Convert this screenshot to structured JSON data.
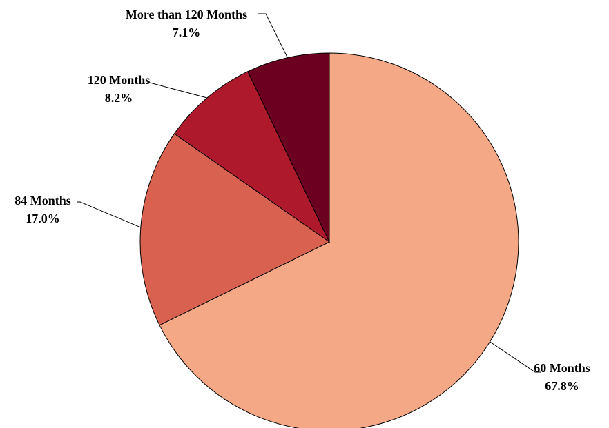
{
  "chart_data": {
    "type": "pie",
    "title": "",
    "slices": [
      {
        "label": "60 Months",
        "value": 67.8,
        "value_label": "67.8%",
        "color": "#F4A886"
      },
      {
        "label": "84 Months",
        "value": 17.0,
        "value_label": "17.0%",
        "color": "#D9614F"
      },
      {
        "label": "120 Months",
        "value": 8.2,
        "value_label": "8.2%",
        "color": "#AE1A2C"
      },
      {
        "label": "More than 120 Months",
        "value": 7.1,
        "value_label": "7.1%",
        "color": "#6B0020"
      }
    ],
    "start_angle": "12 o'clock",
    "direction": "clockwise",
    "legend": "none",
    "labels": "outside with leader lines"
  }
}
